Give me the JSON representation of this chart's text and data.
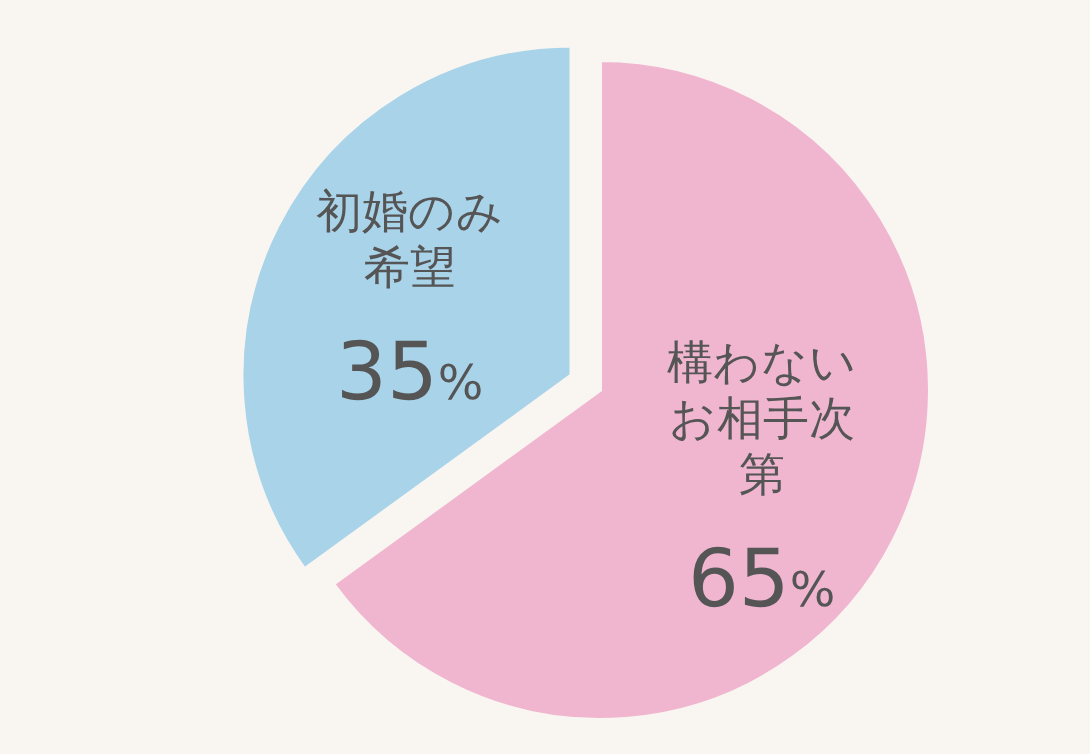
{
  "chart_data": {
    "type": "pie",
    "categories": [
      "構わないお相手次第",
      "初婚のみ希望"
    ],
    "values": [
      65,
      35
    ],
    "colors": [
      "#f0b6cf",
      "#a9d3e9"
    ],
    "value_labels": [
      "65%",
      "35%"
    ]
  }
}
